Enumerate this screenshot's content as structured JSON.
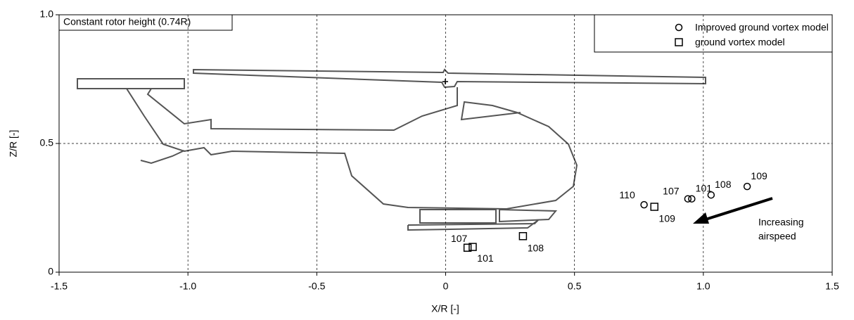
{
  "chart_data": {
    "type": "scatter",
    "title": "Constant rotor height (0.74R)",
    "xlabel": "X/R [-]",
    "ylabel": "Z/R [-]",
    "annotation": [
      "Increasing",
      "airspeed"
    ],
    "xlim": [
      -1.5,
      1.5
    ],
    "xticks": [
      {
        "value": -1.5,
        "label": "-1.5"
      },
      {
        "value": -1,
        "label": "-1.0"
      },
      {
        "value": -0.5,
        "label": "-0.5"
      },
      0,
      0.5,
      {
        "value": 1,
        "label": "1.0"
      },
      1.5
    ],
    "ylim": [
      0,
      1
    ],
    "yticks": [
      0,
      0.5,
      {
        "value": 1,
        "label": "1.0"
      }
    ],
    "grid": true,
    "legend": "upper right",
    "series": [
      {
        "name": "Improved ground vortex model",
        "color": "#000000",
        "marker": "circle",
        "x": [
          0.77,
          0.94,
          0.955,
          1.03,
          1.17
        ],
        "values": [
          0.262,
          0.285,
          0.285,
          0.3,
          0.333
        ],
        "point_labels": [
          "110",
          "107",
          "101",
          "108",
          "109"
        ]
      },
      {
        "name": "ground vortex model",
        "color": "#000000",
        "marker": "square",
        "x": [
          0.81,
          0.085,
          0.105,
          0.3
        ],
        "values": [
          0.254,
          0.095,
          0.098,
          0.14
        ],
        "point_labels": [
          "109",
          "107",
          "101",
          "108"
        ]
      }
    ]
  }
}
